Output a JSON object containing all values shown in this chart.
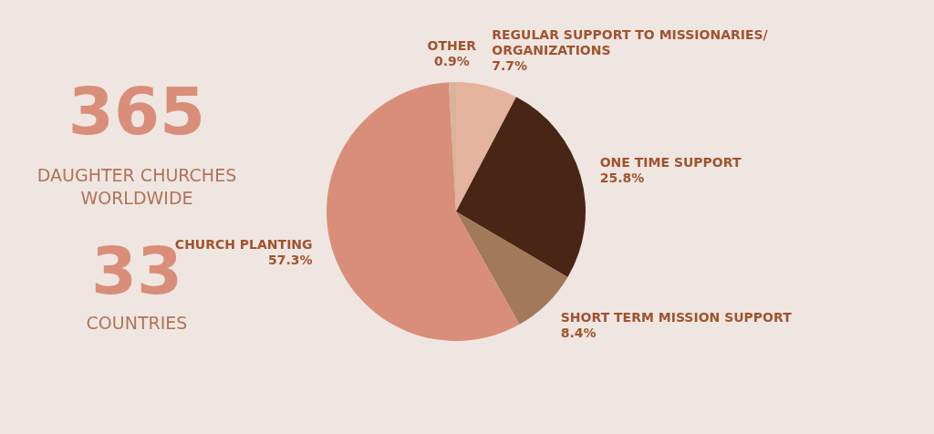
{
  "chart_data": {
    "type": "pie",
    "categories": [
      "REGULAR SUPPORT TO MISSIONARIES/ ORGANIZATIONS",
      "ONE TIME SUPPORT",
      "SHORT TERM MISSION SUPPORT",
      "CHURCH PLANTING",
      "OTHER"
    ],
    "values": [
      7.7,
      25.8,
      8.4,
      57.3,
      0.9
    ],
    "colors": [
      "#e4b49f",
      "#482514",
      "#a2795a",
      "#d98e7a",
      "#d8b49a"
    ],
    "value_labels": [
      "7.7%",
      "25.8%",
      "8.4%",
      "57.3%",
      "0.9%"
    ],
    "legend": false,
    "annotations": [
      "365",
      "DAUGHTER CHURCHES WORLDWIDE",
      "33",
      "COUNTRIES"
    ]
  }
}
